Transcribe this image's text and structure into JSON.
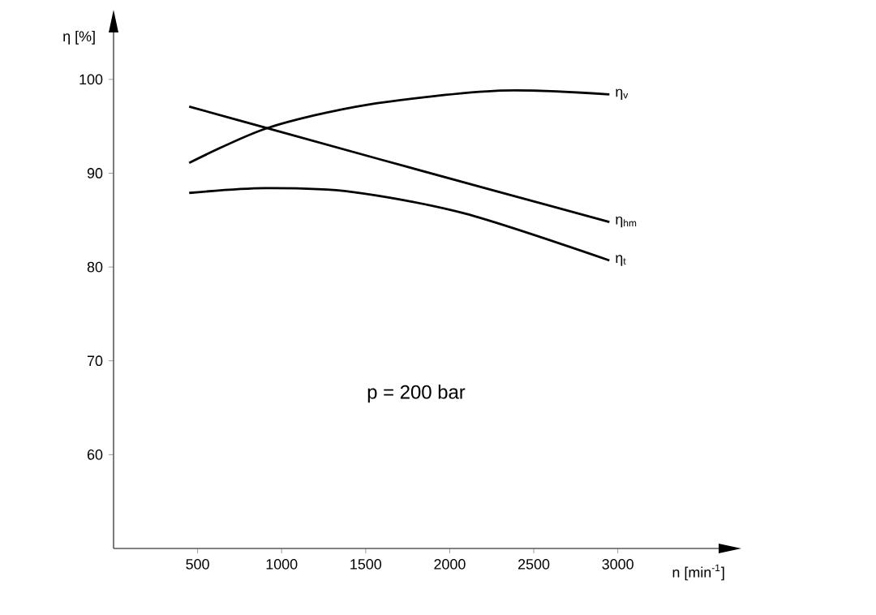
{
  "chart_data": {
    "type": "line",
    "xlabel": "n [min$^{-1}$]",
    "ylabel": "η [%]",
    "annotations": [
      "p = 200 bar"
    ],
    "xlim": [
      0,
      3600
    ],
    "ylim": [
      50,
      105
    ],
    "xticks": [
      500,
      1000,
      1500,
      2000,
      2500,
      3000
    ],
    "yticks": [
      60,
      70,
      80,
      90,
      100
    ],
    "grid": false,
    "legend": false,
    "marker": "none",
    "line_style": "solid",
    "series": [
      {
        "name": "η$_{v}$",
        "color": "#000000",
        "x": [
          450,
          913,
          1510,
          2300,
          2950
        ],
        "values": [
          91.1,
          94.8,
          97.3,
          98.8,
          98.4
        ]
      },
      {
        "name": "η$_{hm}$",
        "color": "#000000",
        "x": [
          450,
          913,
          1600,
          2950
        ],
        "values": [
          97.1,
          94.8,
          91.4,
          84.8
        ]
      },
      {
        "name": "η$_{t}$",
        "color": "#000000",
        "x": [
          450,
          900,
          1420,
          2090,
          2950
        ],
        "values": [
          87.9,
          88.4,
          88.0,
          85.7,
          80.7
        ]
      }
    ]
  }
}
